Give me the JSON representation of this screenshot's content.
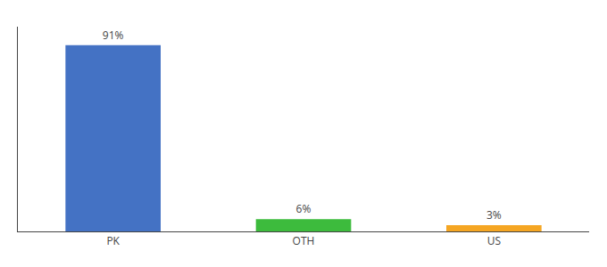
{
  "chart_data": {
    "type": "bar",
    "categories": [
      "PK",
      "OTH",
      "US"
    ],
    "values": [
      91,
      6,
      3
    ],
    "value_labels": [
      "91%",
      "6%",
      "3%"
    ],
    "data_labels": true,
    "colors": [
      "#4472c4",
      "#3dbb3d",
      "#f5a623"
    ],
    "ylim": [
      0,
      100
    ],
    "grid": false,
    "tick_labels": "x"
  }
}
